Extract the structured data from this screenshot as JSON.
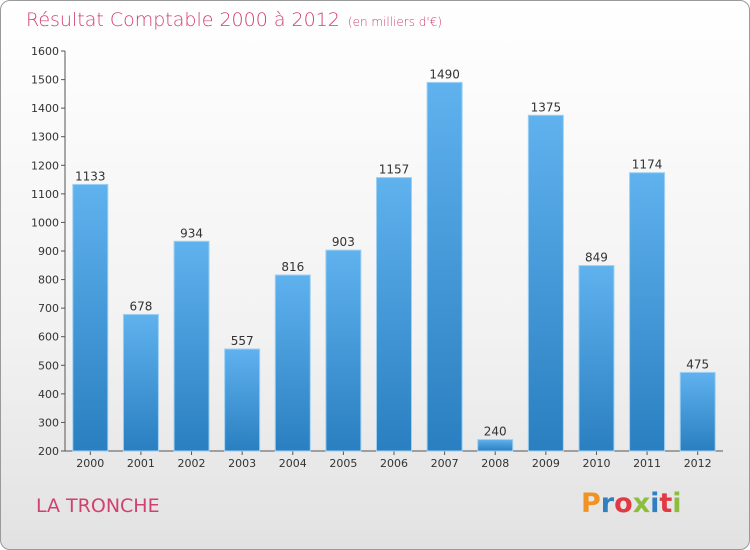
{
  "title": "Résultat Comptable 2000 à 2012",
  "subtitle": "(en milliers d'€)",
  "city": "LA TRONCHE",
  "logo": {
    "letters": [
      "P",
      "r",
      "o",
      "x",
      "i",
      "t",
      "i"
    ],
    "colors": [
      "#f29222",
      "#2f7fc1",
      "#e23a43",
      "#8cbd3f",
      "#2f7fc1",
      "#e23a43",
      "#8cbd3f"
    ]
  },
  "colors": {
    "bar": "#3b95d8",
    "title": "#d1416f"
  },
  "chart_data": {
    "type": "bar",
    "categories": [
      "2000",
      "2001",
      "2002",
      "2003",
      "2004",
      "2005",
      "2006",
      "2007",
      "2008",
      "2009",
      "2010",
      "2011",
      "2012"
    ],
    "values": [
      1133,
      678,
      934,
      557,
      816,
      903,
      1157,
      1490,
      240,
      1375,
      849,
      1174,
      475
    ],
    "ylim": [
      200,
      1600
    ],
    "yticks": [
      200,
      300,
      400,
      500,
      600,
      700,
      800,
      900,
      1000,
      1100,
      1200,
      1300,
      1400,
      1500,
      1600
    ],
    "grid": false
  }
}
